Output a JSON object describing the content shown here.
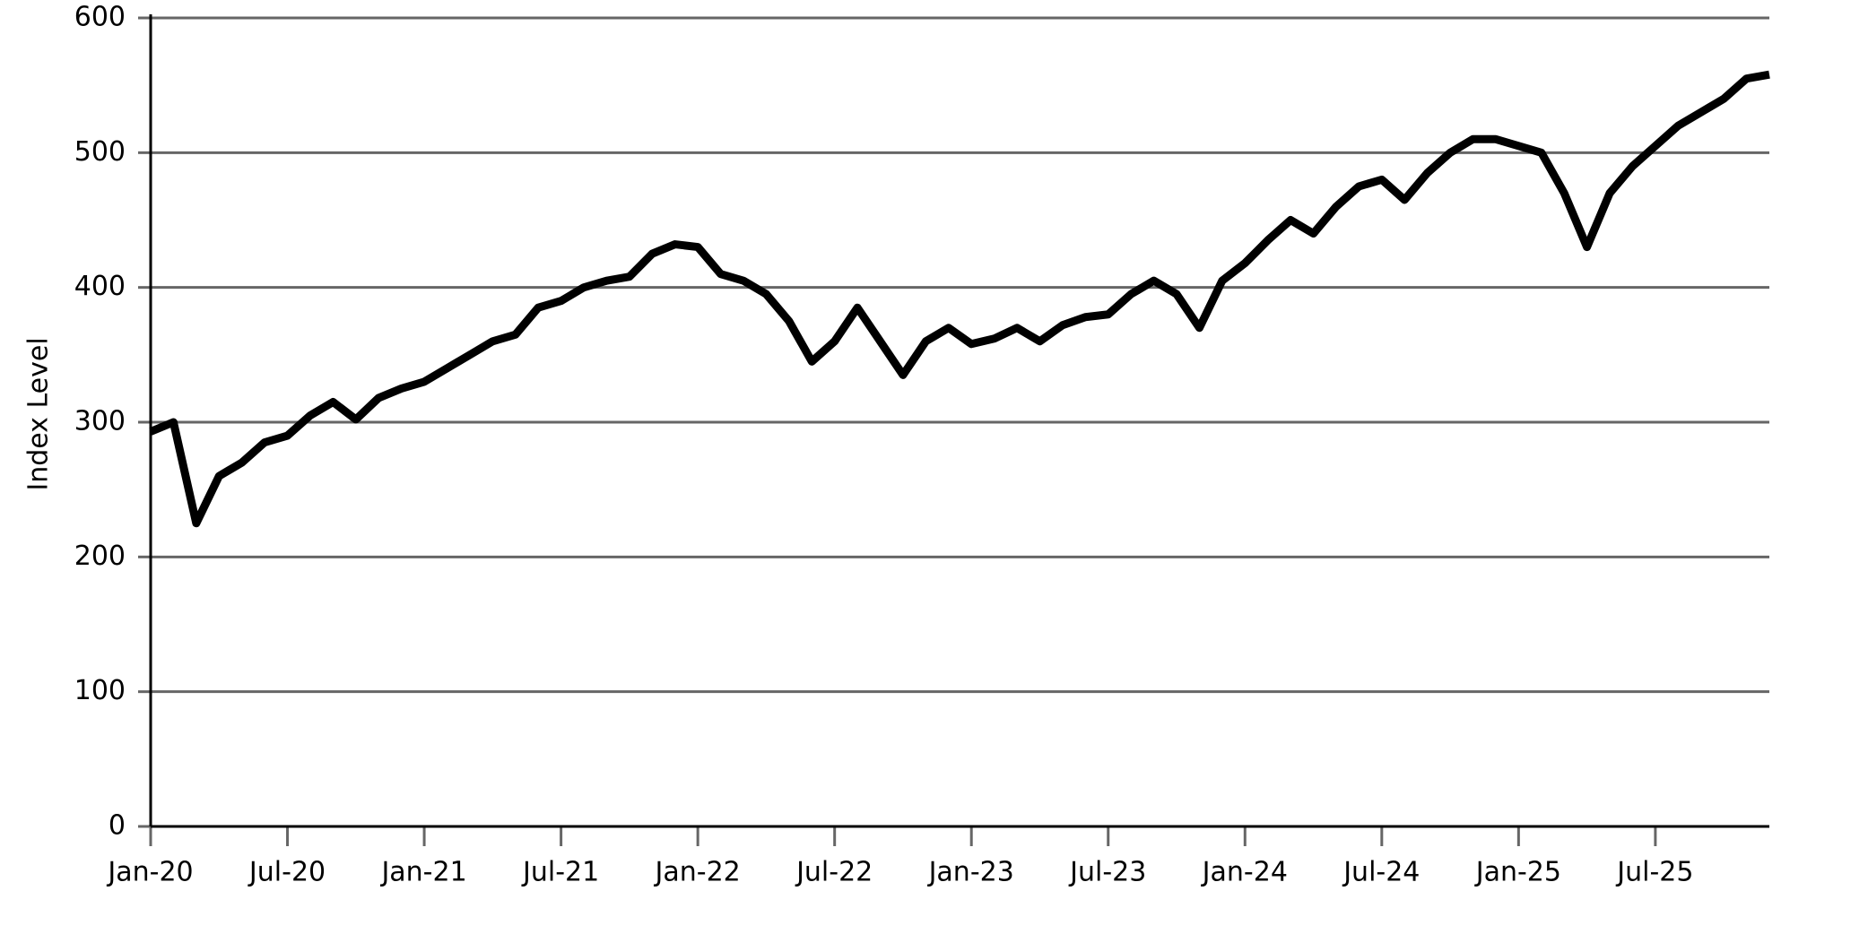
{
  "chart_data": {
    "type": "line",
    "y_label": "Index Level",
    "x": [
      "2020-01",
      "2020-02",
      "2020-03",
      "2020-04",
      "2020-05",
      "2020-06",
      "2020-07",
      "2020-08",
      "2020-09",
      "2020-10",
      "2020-11",
      "2020-12",
      "2021-01",
      "2021-02",
      "2021-03",
      "2021-04",
      "2021-05",
      "2021-06",
      "2021-07",
      "2021-08",
      "2021-09",
      "2021-10",
      "2021-11",
      "2021-12",
      "2022-01",
      "2022-02",
      "2022-03",
      "2022-04",
      "2022-05",
      "2022-06",
      "2022-07",
      "2022-08",
      "2022-09",
      "2022-10",
      "2022-11",
      "2022-12",
      "2023-01",
      "2023-02",
      "2023-03",
      "2023-04",
      "2023-05",
      "2023-06",
      "2023-07",
      "2023-08",
      "2023-09",
      "2023-10",
      "2023-11",
      "2023-12",
      "2024-01",
      "2024-02",
      "2024-03",
      "2024-04",
      "2024-05",
      "2024-06",
      "2024-07",
      "2024-08",
      "2024-09",
      "2024-10",
      "2024-11",
      "2024-12",
      "2025-01",
      "2025-02",
      "2025-03",
      "2025-04",
      "2025-05",
      "2025-06",
      "2025-07",
      "2025-08",
      "2025-09",
      "2025-10",
      "2025-11",
      "2025-12"
    ],
    "series": [
      {
        "color": "#000000",
        "values": [
          293,
          300,
          225,
          260,
          270,
          285,
          290,
          305,
          315,
          302,
          318,
          325,
          330,
          340,
          350,
          360,
          365,
          385,
          390,
          400,
          405,
          408,
          425,
          432,
          430,
          410,
          405,
          395,
          375,
          345,
          360,
          385,
          360,
          335,
          360,
          370,
          358,
          362,
          370,
          360,
          372,
          378,
          380,
          395,
          405,
          395,
          370,
          405,
          418,
          435,
          450,
          440,
          460,
          475,
          480,
          465,
          485,
          500,
          510,
          510,
          505,
          500,
          470,
          430,
          470,
          490,
          505,
          520,
          530,
          540,
          555,
          558
        ]
      }
    ],
    "xlim": [
      "2020-01",
      "2025-12"
    ],
    "xticks": [
      {
        "value": "2020-01",
        "label": "Jan-20"
      },
      {
        "value": "2020-07",
        "label": "Jul-20"
      },
      {
        "value": "2021-01",
        "label": "Jan-21"
      },
      {
        "value": "2021-07",
        "label": "Jul-21"
      },
      {
        "value": "2022-01",
        "label": "Jan-22"
      },
      {
        "value": "2022-07",
        "label": "Jul-22"
      },
      {
        "value": "2023-01",
        "label": "Jan-23"
      },
      {
        "value": "2023-07",
        "label": "Jul-23"
      },
      {
        "value": "2024-01",
        "label": "Jan-24"
      },
      {
        "value": "2024-07",
        "label": "Jul-24"
      },
      {
        "value": "2025-01",
        "label": "Jan-25"
      },
      {
        "value": "2025-07",
        "label": "Jul-25"
      }
    ],
    "ylim": [
      0,
      600
    ],
    "yticks": [
      0,
      100,
      200,
      300,
      400,
      500,
      600
    ],
    "grid": true
  }
}
